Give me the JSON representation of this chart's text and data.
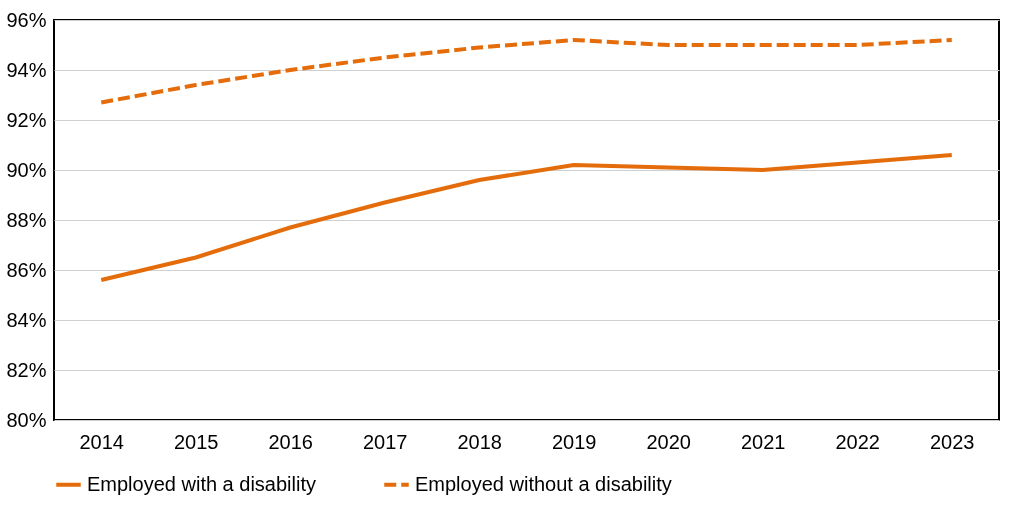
{
  "chart_data": {
    "type": "line",
    "categories": [
      "2014",
      "2015",
      "2016",
      "2017",
      "2018",
      "2019",
      "2020",
      "2021",
      "2022",
      "2023"
    ],
    "series": [
      {
        "name": "Employed with a disability",
        "color": "#e46c0a",
        "line_style": "solid",
        "values": [
          85.6,
          86.5,
          87.7,
          88.7,
          89.6,
          90.2,
          90.1,
          90.0,
          90.3,
          90.6
        ]
      },
      {
        "name": "Employed without a disability",
        "color": "#e46c0a",
        "line_style": "dashed",
        "values": [
          92.7,
          93.4,
          94.0,
          94.5,
          94.9,
          95.2,
          95.0,
          95.0,
          95.0,
          95.2
        ]
      }
    ],
    "ylim": [
      80,
      96
    ],
    "yticks": [
      {
        "value": 80,
        "label": "80%"
      },
      {
        "value": 82,
        "label": "82%"
      },
      {
        "value": 84,
        "label": "84%"
      },
      {
        "value": 86,
        "label": "86%"
      },
      {
        "value": 88,
        "label": "88%"
      },
      {
        "value": 90,
        "label": "90%"
      },
      {
        "value": 92,
        "label": "92%"
      },
      {
        "value": 94,
        "label": "94%"
      },
      {
        "value": 96,
        "label": "96%"
      }
    ],
    "grid": "y",
    "legend": "bottom",
    "marker": "none"
  }
}
